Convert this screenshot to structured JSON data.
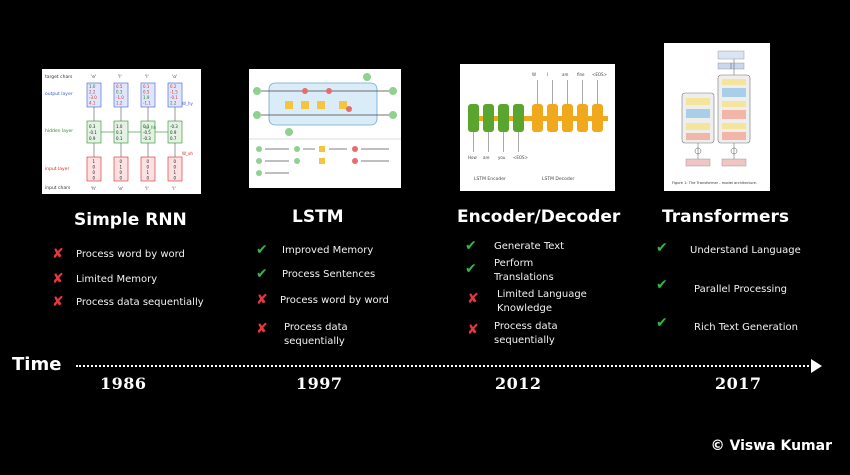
{
  "timeline": {
    "label": "Time",
    "eras": [
      {
        "title": "Simple RNN",
        "year": "1986",
        "items": [
          {
            "status": "cross",
            "text": "Process word by word"
          },
          {
            "status": "cross",
            "text": "Limited Memory"
          },
          {
            "status": "cross",
            "text": "Process data sequentially"
          }
        ]
      },
      {
        "title": "LSTM",
        "year": "1997",
        "items": [
          {
            "status": "check",
            "text": "Improved Memory"
          },
          {
            "status": "check",
            "text": "Process Sentences"
          },
          {
            "status": "cross",
            "text": "Process word by word"
          },
          {
            "status": "cross",
            "text": "Process data sequentially"
          }
        ]
      },
      {
        "title": "Encoder/Decoder",
        "year": "2012",
        "items": [
          {
            "status": "check",
            "text": "Generate Text"
          },
          {
            "status": "check",
            "text": "Perform Translations"
          },
          {
            "status": "cross",
            "text": "Limited Language Knowledge"
          },
          {
            "status": "cross",
            "text": "Process data sequentially"
          }
        ]
      },
      {
        "title": "Transformers",
        "year": "2017",
        "items": [
          {
            "status": "check",
            "text": "Understand Language"
          },
          {
            "status": "check",
            "text": "Parallel Processing"
          },
          {
            "status": "check",
            "text": "Rich Text Generation"
          }
        ]
      }
    ]
  },
  "thumbnails": {
    "rnn": {
      "row_labels": [
        "target chars",
        "output layer",
        "hidden layer",
        "input layer",
        "input chars"
      ],
      "target_chars": [
        "'e'",
        "'l'",
        "'l'",
        "'o'"
      ],
      "input_chars": [
        "'h'",
        "'e'",
        "'l'",
        "'l'"
      ],
      "output_values": [
        [
          "1.0",
          "2.2",
          "-3.0",
          "4.1"
        ],
        [
          "0.5",
          "0.3",
          "-1.0",
          "1.2"
        ],
        [
          "0.1",
          "0.5",
          "1.9",
          "-1.1"
        ],
        [
          "0.2",
          "-1.5",
          "-0.1",
          "2.2"
        ]
      ],
      "hidden_values": [
        [
          "0.3",
          "-0.1",
          "0.9"
        ],
        [
          "1.0",
          "0.3",
          "0.1"
        ],
        [
          "0.1",
          "-0.5",
          "-0.3"
        ],
        [
          "-0.3",
          "0.9",
          "0.7"
        ]
      ],
      "input_values": [
        [
          "1",
          "0",
          "0",
          "0"
        ],
        [
          "0",
          "1",
          "0",
          "0"
        ],
        [
          "0",
          "0",
          "1",
          "0"
        ],
        [
          "0",
          "0",
          "1",
          "0"
        ]
      ],
      "weight_labels": [
        "W_hy",
        "W_hh",
        "W_xh"
      ]
    },
    "encoder": {
      "top_tokens": [
        "W",
        "I",
        "am",
        "fine",
        "<EOS>"
      ],
      "bottom_tokens": [
        "How",
        "are",
        "you",
        "<EOS>"
      ],
      "encoder_label": "LSTM Encoder",
      "decoder_label": "LSTM Decoder"
    },
    "transformer": {
      "caption": "Figure 1: The Transformer - model architecture."
    }
  },
  "copyright": "© Viswa Kumar",
  "colors": {
    "background": "#000000",
    "check": "#2fb84a",
    "cross": "#e8383d",
    "lstm_green": "#5aa52e",
    "lstm_orange": "#f0a81c"
  }
}
